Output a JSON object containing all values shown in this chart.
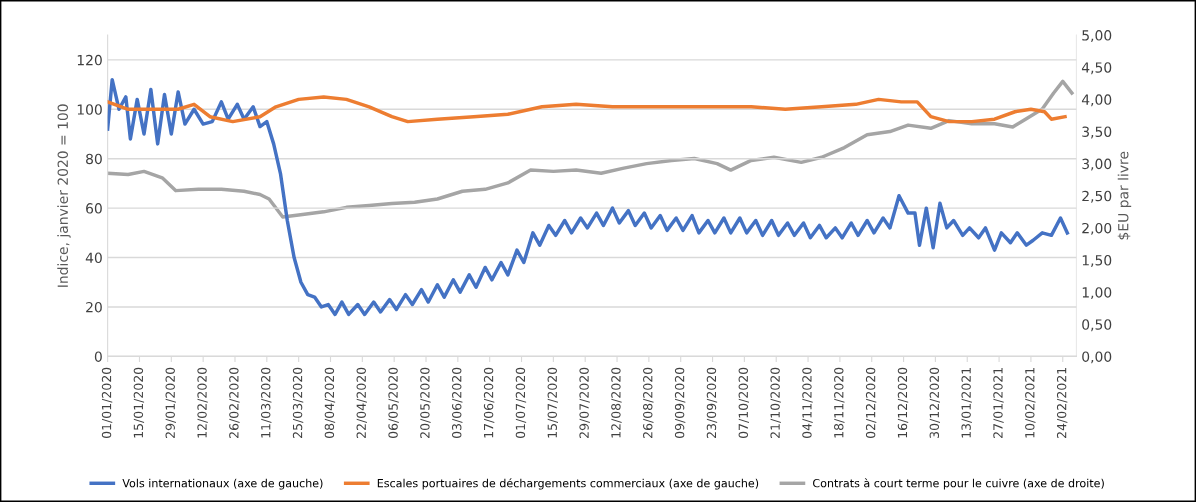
{
  "chart_data": {
    "type": "line",
    "ylabel": "Indice, janvier 2020 = 100",
    "y2label": "$EU par livre",
    "xlim": [
      "2020-01-01",
      "2021-03-02"
    ],
    "xticks": [
      {
        "value": "2020-01-01",
        "label": "01/01/2020"
      },
      {
        "value": "2020-01-15",
        "label": "15/01/2020"
      },
      {
        "value": "2020-01-29",
        "label": "29/01/2020"
      },
      {
        "value": "2020-02-12",
        "label": "12/02/2020"
      },
      {
        "value": "2020-02-26",
        "label": "26/02/2020"
      },
      {
        "value": "2020-03-11",
        "label": "11/03/2020"
      },
      {
        "value": "2020-03-25",
        "label": "25/03/2020"
      },
      {
        "value": "2020-04-08",
        "label": "08/04/2020"
      },
      {
        "value": "2020-04-22",
        "label": "22/04/2020"
      },
      {
        "value": "2020-05-06",
        "label": "06/05/2020"
      },
      {
        "value": "2020-05-20",
        "label": "20/05/2020"
      },
      {
        "value": "2020-06-03",
        "label": "03/06/2020"
      },
      {
        "value": "2020-06-17",
        "label": "17/06/2020"
      },
      {
        "value": "2020-07-01",
        "label": "01/07/2020"
      },
      {
        "value": "2020-07-15",
        "label": "15/07/2020"
      },
      {
        "value": "2020-07-29",
        "label": "29/07/2020"
      },
      {
        "value": "2020-08-12",
        "label": "12/08/2020"
      },
      {
        "value": "2020-08-26",
        "label": "26/08/2020"
      },
      {
        "value": "2020-09-09",
        "label": "09/09/2020"
      },
      {
        "value": "2020-09-23",
        "label": "23/09/2020"
      },
      {
        "value": "2020-10-07",
        "label": "07/10/2020"
      },
      {
        "value": "2020-10-21",
        "label": "21/10/2020"
      },
      {
        "value": "2020-11-04",
        "label": "04/11/2020"
      },
      {
        "value": "2020-11-18",
        "label": "18/11/2020"
      },
      {
        "value": "2020-12-02",
        "label": "02/12/2020"
      },
      {
        "value": "2020-12-16",
        "label": "16/12/2020"
      },
      {
        "value": "2020-12-30",
        "label": "30/12/2020"
      },
      {
        "value": "2021-01-13",
        "label": "13/01/2021"
      },
      {
        "value": "2021-01-27",
        "label": "27/01/2021"
      },
      {
        "value": "2021-02-10",
        "label": "10/02/2021"
      },
      {
        "value": "2021-02-24",
        "label": "24/02/2021"
      }
    ],
    "ylim": [
      0,
      130
    ],
    "yticks": [
      0,
      20,
      40,
      60,
      80,
      100,
      120
    ],
    "y2lim": [
      0,
      5
    ],
    "y2ticks": [
      {
        "value": 0,
        "label": "0,00"
      },
      {
        "value": 0.5,
        "label": "0,50"
      },
      {
        "value": 1,
        "label": "1,00"
      },
      {
        "value": 1.5,
        "label": "1,50"
      },
      {
        "value": 2,
        "label": "2,00"
      },
      {
        "value": 2.5,
        "label": "2,50"
      },
      {
        "value": 3,
        "label": "3,00"
      },
      {
        "value": 3.5,
        "label": "3,50"
      },
      {
        "value": 4,
        "label": "4,00"
      },
      {
        "value": 4.5,
        "label": "4,50"
      },
      {
        "value": 5,
        "label": "5,00"
      }
    ],
    "grid": "y",
    "legend": "bottom",
    "marker": "none",
    "line_style": "solid",
    "series": [
      {
        "name": "Vols internationaux (axe de gauche)",
        "color": "#4472c4",
        "x": [
          "2020-01-01",
          "2020-01-03",
          "2020-01-06",
          "2020-01-09",
          "2020-01-11",
          "2020-01-14",
          "2020-01-17",
          "2020-01-20",
          "2020-01-23",
          "2020-01-26",
          "2020-01-29",
          "2020-02-01",
          "2020-02-04",
          "2020-02-08",
          "2020-02-12",
          "2020-02-16",
          "2020-02-20",
          "2020-02-23",
          "2020-02-27",
          "2020-03-01",
          "2020-03-05",
          "2020-03-08",
          "2020-03-11",
          "2020-03-14",
          "2020-03-17",
          "2020-03-20",
          "2020-03-23",
          "2020-03-26",
          "2020-03-29",
          "2020-04-01",
          "2020-04-04",
          "2020-04-07",
          "2020-04-10",
          "2020-04-13",
          "2020-04-16",
          "2020-04-20",
          "2020-04-23",
          "2020-04-27",
          "2020-04-30",
          "2020-05-04",
          "2020-05-07",
          "2020-05-11",
          "2020-05-14",
          "2020-05-18",
          "2020-05-21",
          "2020-05-25",
          "2020-05-28",
          "2020-06-01",
          "2020-06-04",
          "2020-06-08",
          "2020-06-11",
          "2020-06-15",
          "2020-06-18",
          "2020-06-22",
          "2020-06-25",
          "2020-06-29",
          "2020-07-02",
          "2020-07-06",
          "2020-07-09",
          "2020-07-13",
          "2020-07-16",
          "2020-07-20",
          "2020-07-23",
          "2020-07-27",
          "2020-07-30",
          "2020-08-03",
          "2020-08-06",
          "2020-08-10",
          "2020-08-13",
          "2020-08-17",
          "2020-08-20",
          "2020-08-24",
          "2020-08-27",
          "2020-08-31",
          "2020-09-03",
          "2020-09-07",
          "2020-09-10",
          "2020-09-14",
          "2020-09-17",
          "2020-09-21",
          "2020-09-24",
          "2020-09-28",
          "2020-10-01",
          "2020-10-05",
          "2020-10-08",
          "2020-10-12",
          "2020-10-15",
          "2020-10-19",
          "2020-10-22",
          "2020-10-26",
          "2020-10-29",
          "2020-11-02",
          "2020-11-05",
          "2020-11-09",
          "2020-11-12",
          "2020-11-16",
          "2020-11-19",
          "2020-11-23",
          "2020-11-26",
          "2020-11-30",
          "2020-12-03",
          "2020-12-07",
          "2020-12-10",
          "2020-12-14",
          "2020-12-18",
          "2020-12-21",
          "2020-12-23",
          "2020-12-26",
          "2020-12-29",
          "2021-01-01",
          "2021-01-04",
          "2021-01-07",
          "2021-01-11",
          "2021-01-14",
          "2021-01-18",
          "2021-01-21",
          "2021-01-25",
          "2021-01-28",
          "2021-02-01",
          "2021-02-04",
          "2021-02-08",
          "2021-02-11",
          "2021-02-15",
          "2021-02-19",
          "2021-02-23",
          "2021-02-26"
        ],
        "values": [
          92,
          112,
          100,
          105,
          88,
          104,
          90,
          108,
          86,
          106,
          90,
          107,
          94,
          100,
          94,
          95,
          103,
          96,
          102,
          96,
          101,
          93,
          95,
          86,
          74,
          55,
          40,
          30,
          25,
          24,
          20,
          21,
          17,
          22,
          17,
          21,
          17,
          22,
          18,
          23,
          19,
          25,
          21,
          27,
          22,
          29,
          24,
          31,
          26,
          33,
          28,
          36,
          31,
          38,
          33,
          43,
          38,
          50,
          45,
          53,
          49,
          55,
          50,
          56,
          52,
          58,
          53,
          60,
          54,
          59,
          53,
          58,
          52,
          57,
          51,
          56,
          51,
          57,
          50,
          55,
          50,
          56,
          50,
          56,
          50,
          55,
          49,
          55,
          49,
          54,
          49,
          54,
          48,
          53,
          48,
          52,
          48,
          54,
          49,
          55,
          50,
          56,
          52,
          65,
          58,
          58,
          45,
          60,
          44,
          62,
          52,
          55,
          49,
          52,
          48,
          52,
          43,
          50,
          46,
          50,
          45,
          47,
          50,
          49,
          56,
          50
        ]
      },
      {
        "name": "Escales portuaires de déchargements commerciaux (axe de gauche)",
        "color": "#ed7d31",
        "x": [
          "2020-01-01",
          "2020-01-10",
          "2020-01-20",
          "2020-02-01",
          "2020-02-08",
          "2020-02-15",
          "2020-02-25",
          "2020-03-08",
          "2020-03-15",
          "2020-03-25",
          "2020-04-05",
          "2020-04-15",
          "2020-04-25",
          "2020-05-05",
          "2020-05-12",
          "2020-05-25",
          "2020-06-10",
          "2020-06-25",
          "2020-07-10",
          "2020-07-25",
          "2020-08-10",
          "2020-08-25",
          "2020-09-10",
          "2020-09-25",
          "2020-10-10",
          "2020-10-25",
          "2020-11-10",
          "2020-11-25",
          "2020-12-05",
          "2020-12-15",
          "2020-12-22",
          "2020-12-28",
          "2021-01-05",
          "2021-01-15",
          "2021-01-25",
          "2021-02-03",
          "2021-02-10",
          "2021-02-16",
          "2021-02-19",
          "2021-02-25"
        ],
        "values": [
          103,
          100,
          100,
          100,
          102,
          97,
          95,
          97,
          101,
          104,
          105,
          104,
          101,
          97,
          95,
          96,
          97,
          98,
          101,
          102,
          101,
          101,
          101,
          101,
          101,
          100,
          101,
          102,
          104,
          103,
          103,
          97,
          95,
          95,
          96,
          99,
          100,
          99,
          96,
          97
        ]
      },
      {
        "name": "Contrats à court terme pour le cuivre (axe de droite)",
        "color": "#a5a5a5",
        "axis": "y2",
        "x": [
          "2020-01-01",
          "2020-01-10",
          "2020-01-17",
          "2020-01-25",
          "2020-01-31",
          "2020-02-10",
          "2020-02-20",
          "2020-03-01",
          "2020-03-08",
          "2020-03-12",
          "2020-03-18",
          "2020-03-25",
          "2020-04-05",
          "2020-04-15",
          "2020-04-25",
          "2020-05-05",
          "2020-05-15",
          "2020-05-25",
          "2020-06-05",
          "2020-06-15",
          "2020-06-25",
          "2020-07-05",
          "2020-07-15",
          "2020-07-25",
          "2020-08-05",
          "2020-08-15",
          "2020-08-25",
          "2020-09-05",
          "2020-09-15",
          "2020-09-25",
          "2020-10-01",
          "2020-10-10",
          "2020-10-20",
          "2020-11-01",
          "2020-11-10",
          "2020-11-20",
          "2020-11-30",
          "2020-12-10",
          "2020-12-18",
          "2020-12-28",
          "2021-01-05",
          "2021-01-15",
          "2021-01-25",
          "2021-02-02",
          "2021-02-08",
          "2021-02-15",
          "2021-02-20",
          "2021-02-24",
          "2021-02-28"
        ],
        "values": [
          2.85,
          2.83,
          2.88,
          2.78,
          2.58,
          2.6,
          2.6,
          2.57,
          2.52,
          2.45,
          2.17,
          2.2,
          2.25,
          2.32,
          2.35,
          2.38,
          2.4,
          2.45,
          2.57,
          2.6,
          2.7,
          2.9,
          2.88,
          2.9,
          2.85,
          2.93,
          3.0,
          3.05,
          3.08,
          3.0,
          2.9,
          3.05,
          3.1,
          3.02,
          3.1,
          3.25,
          3.45,
          3.5,
          3.6,
          3.55,
          3.67,
          3.62,
          3.62,
          3.57,
          3.7,
          3.85,
          4.1,
          4.28,
          4.1
        ]
      }
    ]
  }
}
